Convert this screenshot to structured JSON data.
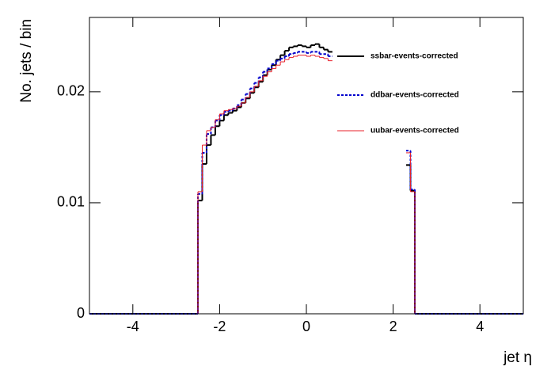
{
  "chart_data": {
    "type": "histogram",
    "x_label": "jet η",
    "y_label": "No. jets / bin",
    "bins": [
      -5,
      -2.5,
      -2.4,
      -2.3,
      -2.2,
      -2.1,
      -2.0,
      -1.9,
      -1.8,
      -1.7,
      -1.6,
      -1.5,
      -1.4,
      -1.3,
      -1.2,
      -1.1,
      -1.0,
      -0.9,
      -0.8,
      -0.7,
      -0.6,
      -0.5,
      -0.4,
      -0.3,
      -0.2,
      -0.1,
      0.0,
      0.1,
      0.2,
      0.3,
      0.4,
      0.5,
      0.6,
      2.3,
      2.4,
      2.5,
      5
    ],
    "series": [
      {
        "name": "ssbar-events-corrected",
        "color": "#000000",
        "dash": "solid",
        "values": [
          0,
          0.0102,
          0.0135,
          0.0152,
          0.0161,
          0.0169,
          0.0174,
          0.0179,
          0.0181,
          0.0183,
          0.0186,
          0.019,
          0.0194,
          0.0199,
          0.0204,
          0.0209,
          0.0215,
          0.022,
          0.0224,
          0.0229,
          0.0233,
          0.0237,
          0.024,
          0.0241,
          0.0242,
          0.0241,
          0.024,
          0.0242,
          0.0243,
          0.024,
          0.0238,
          0.0236,
          null,
          0.0134,
          0.0111,
          0
        ]
      },
      {
        "name": "ddbar-events-corrected",
        "color": "#0000cc",
        "dash": "dashed",
        "values": [
          0,
          0.0108,
          0.0145,
          0.0162,
          0.0168,
          0.0174,
          0.0179,
          0.0182,
          0.0183,
          0.0185,
          0.0188,
          0.0193,
          0.0198,
          0.0203,
          0.0208,
          0.0213,
          0.0218,
          0.0221,
          0.0225,
          0.0228,
          0.023,
          0.0232,
          0.0234,
          0.0235,
          0.0236,
          0.0236,
          0.0235,
          0.0236,
          0.0236,
          0.0234,
          0.0234,
          0.0232,
          null,
          0.0147,
          0.0112,
          0
        ]
      },
      {
        "name": "uubar-events-corrected",
        "color": "#e8202a",
        "dash": "solid",
        "values": [
          0,
          0.011,
          0.0152,
          0.0165,
          0.0168,
          0.0175,
          0.018,
          0.0183,
          0.0184,
          0.0185,
          0.0187,
          0.019,
          0.0195,
          0.02,
          0.0205,
          0.021,
          0.0214,
          0.0218,
          0.0221,
          0.0224,
          0.0227,
          0.0229,
          0.0231,
          0.0232,
          0.0233,
          0.0233,
          0.0232,
          0.0233,
          0.0232,
          0.0231,
          0.023,
          0.0228,
          null,
          0.0145,
          0.011,
          0
        ]
      }
    ],
    "xlim": [
      -5,
      5
    ],
    "xticks": [
      -4,
      -2,
      0,
      2,
      4
    ],
    "ylim": [
      0,
      0.0267
    ],
    "yticks": [
      0,
      0.01,
      0.02
    ],
    "legend": "top-right"
  }
}
